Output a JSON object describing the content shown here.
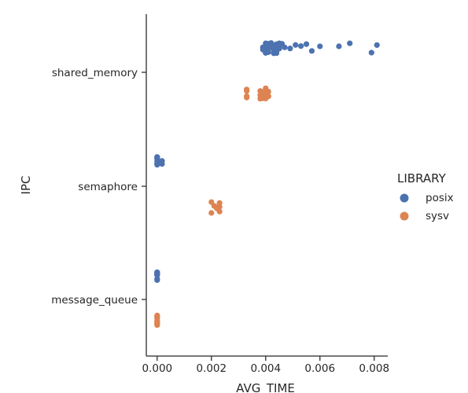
{
  "chart_data": {
    "type": "scatter",
    "subtype": "strip",
    "xlabel": "AVG_TIME",
    "ylabel": "IPC",
    "xlim": [
      -0.0004,
      0.0085
    ],
    "xticks": [
      "0.000",
      "0.002",
      "0.004",
      "0.006",
      "0.008"
    ],
    "xtick_values": [
      0.0,
      0.002,
      0.004,
      0.006,
      0.008
    ],
    "categories": [
      "shared_memory",
      "semaphore",
      "message_queue"
    ],
    "legend": {
      "title": "LIBRARY",
      "placement": "right"
    },
    "grid": false,
    "series": [
      {
        "name": "posix",
        "color": "#4c72b0",
        "points": [
          {
            "category": "shared_memory",
            "x": [
              0.0039,
              0.004,
              0.0041,
              0.0042,
              0.0043,
              0.0044,
              0.0045,
              0.004,
              0.0041,
              0.0042,
              0.0043,
              0.0044,
              0.0039,
              0.004,
              0.0041,
              0.0042,
              0.0043,
              0.0044,
              0.0045,
              0.004,
              0.0041,
              0.0042,
              0.0043,
              0.0044,
              0.0046,
              0.0039,
              0.004,
              0.0041,
              0.0042,
              0.0043,
              0.0044,
              0.0045,
              0.0042,
              0.0043,
              0.0047,
              0.0051,
              0.0049,
              0.0053,
              0.0055,
              0.0057,
              0.006,
              0.0067,
              0.0071,
              0.0079,
              0.0081,
              0.0041,
              0.0043,
              0.0045,
              0.004,
              0.0044
            ]
          },
          {
            "category": "semaphore",
            "x": [
              0.0,
              0.0,
              0.0,
              0.0,
              0.0,
              0.0,
              0.0,
              0.00018,
              0.00018,
              2e-05
            ]
          },
          {
            "category": "message_queue",
            "x": [
              0.0,
              0.0,
              0.0,
              0.0,
              0.0,
              0.0,
              0.0,
              0.0,
              0.0,
              0.0
            ]
          }
        ]
      },
      {
        "name": "sysv",
        "color": "#dd8452",
        "points": [
          {
            "category": "shared_memory",
            "x": [
              0.0033,
              0.0033,
              0.0033,
              0.0033,
              0.0033,
              0.0038,
              0.0039,
              0.004,
              0.0041,
              0.0038,
              0.0039,
              0.004,
              0.0041,
              0.0039,
              0.004,
              0.004,
              0.0039,
              0.0041,
              0.0038,
              0.004
            ]
          },
          {
            "category": "semaphore",
            "x": [
              0.002,
              0.0021,
              0.0022,
              0.0023,
              0.0023,
              0.002,
              0.0022,
              0.0023
            ]
          },
          {
            "category": "message_queue",
            "x": [
              0.0,
              0.0,
              0.0,
              0.0,
              0.0,
              0.0,
              0.0,
              0.0,
              0.0,
              0.0
            ]
          }
        ]
      }
    ]
  }
}
